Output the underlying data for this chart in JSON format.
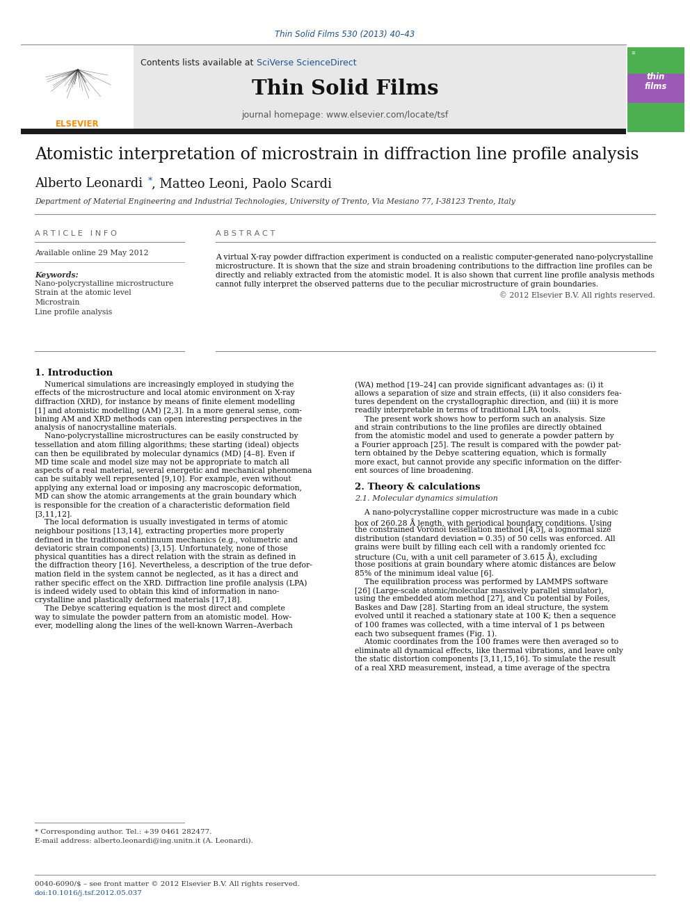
{
  "figsize": [
    9.92,
    13.23
  ],
  "dpi": 100,
  "bg_color": "#ffffff",
  "journal_citation": "Thin Solid Films 530 (2013) 40–43",
  "journal_citation_color": "#1a5294",
  "contents_line": "Contents lists available at ",
  "sciverse_text": "SciVerse ScienceDirect",
  "sciverse_color": "#1a5294",
  "journal_title": "Thin Solid Films",
  "journal_homepage": "journal homepage: www.elsevier.com/locate/tsf",
  "paper_title": "Atomistic interpretation of microstrain in diffraction line profile analysis",
  "affiliation": "Department of Material Engineering and Industrial Technologies, University of Trento, Via Mesiano 77, I-38123 Trento, Italy",
  "article_info_header": "A R T I C L E   I N F O",
  "available_online": "Available online 29 May 2012",
  "keywords_header": "Keywords:",
  "keywords": [
    "Nano-polycrystalline microstructure",
    "Strain at the atomic level",
    "Microstrain",
    "Line profile analysis"
  ],
  "abstract_header": "A B S T R A C T",
  "copyright": "© 2012 Elsevier B.V. All rights reserved.",
  "section1_title": "1. Introduction",
  "section2_title": "2. Theory & calculations",
  "section2_sub": "2.1. Molecular dynamics simulation",
  "footnote1": "* Corresponding author. Tel.: +39 0461 282477.",
  "footnote2": "E-mail address: alberto.leonardi@ing.unitn.it (A. Leonardi).",
  "footnote3": "0040-6090/$ – see front matter © 2012 Elsevier B.V. All rights reserved.",
  "footnote4": "doi:10.1016/j.tsf.2012.05.037",
  "header_bg": "#e8e8e8",
  "thick_border": "#1a1a1a",
  "link_color": "#1a5294",
  "elsevier_color": "#ff8c00",
  "col1_text": [
    "    Numerical simulations are increasingly employed in studying the",
    "effects of the microstructure and local atomic environment on X-ray",
    "diffraction (XRD), for instance by means of finite element modelling",
    "[1] and atomistic modelling (AM) [2,3]. In a more general sense, com-",
    "bining AM and XRD methods can open interesting perspectives in the",
    "analysis of nanocrystalline materials.",
    "    Nano-polycrystalline microstructures can be easily constructed by",
    "tessellation and atom filling algorithms; these starting (ideal) objects",
    "can then be equilibrated by molecular dynamics (MD) [4–8]. Even if",
    "MD time scale and model size may not be appropriate to match all",
    "aspects of a real material, several energetic and mechanical phenomena",
    "can be suitably well represented [9,10]. For example, even without",
    "applying any external load or imposing any macroscopic deformation,",
    "MD can show the atomic arrangements at the grain boundary which",
    "is responsible for the creation of a characteristic deformation field",
    "[3,11,12].",
    "    The local deformation is usually investigated in terms of atomic",
    "neighbour positions [13,14], extracting properties more properly",
    "defined in the traditional continuum mechanics (e.g., volumetric and",
    "deviatoric strain components) [3,15]. Unfortunately, none of those",
    "physical quantities has a direct relation with the strain as defined in",
    "the diffraction theory [16]. Nevertheless, a description of the true defor-",
    "mation field in the system cannot be neglected, as it has a direct and",
    "rather specific effect on the XRD. Diffraction line profile analysis (LPA)",
    "is indeed widely used to obtain this kind of information in nano-",
    "crystalline and plastically deformed materials [17,18].",
    "    The Debye scattering equation is the most direct and complete",
    "way to simulate the powder pattern from an atomistic model. How-",
    "ever, modelling along the lines of the well-known Warren–Averbach"
  ],
  "col2_text_part1": [
    "(WA) method [19–24] can provide significant advantages as: (i) it",
    "allows a separation of size and strain effects, (ii) it also considers fea-",
    "tures dependent on the crystallographic direction, and (iii) it is more",
    "readily interpretable in terms of traditional LPA tools.",
    "    The present work shows how to perform such an analysis. Size",
    "and strain contributions to the line profiles are directly obtained",
    "from the atomistic model and used to generate a powder pattern by",
    "a Fourier approach [25]. The result is compared with the powder pat-",
    "tern obtained by the Debye scattering equation, which is formally",
    "more exact, but cannot provide any specific information on the differ-",
    "ent sources of line broadening."
  ],
  "sec2_text": [
    "    A nano-polycrystalline copper microstructure was made in a cubic",
    "box of 260.28 Å length, with periodical boundary conditions. Using",
    "the constrained Voronoi tessellation method [4,5], a lognormal size",
    "distribution (standard deviation = 0.35) of 50 cells was enforced. All",
    "grains were built by filling each cell with a randomly oriented fcc",
    "structure (Cu, with a unit cell parameter of 3.615 Å), excluding",
    "those positions at grain boundary where atomic distances are below",
    "85% of the minimum ideal value [6].",
    "    The equilibration process was performed by LAMMPS software",
    "[26] (Large-scale atomic/molecular massively parallel simulator),",
    "using the embedded atom method [27], and Cu potential by Foiles,",
    "Baskes and Daw [28]. Starting from an ideal structure, the system",
    "evolved until it reached a stationary state at 100 K; then a sequence",
    "of 100 frames was collected, with a time interval of 1 ps between",
    "each two subsequent frames (Fig. 1).",
    "    Atomic coordinates from the 100 frames were then averaged so to",
    "eliminate all dynamical effects, like thermal vibrations, and leave only",
    "the static distortion components [3,11,15,16]. To simulate the result",
    "of a real XRD measurement, instead, a time average of the spectra"
  ],
  "abstract_lines": [
    "A virtual X-ray powder diffraction experiment is conducted on a realistic computer-generated nano-polycrystalline",
    "microstructure. It is shown that the size and strain broadening contributions to the diffraction line profiles can be",
    "directly and reliably extracted from the atomistic model. It is also shown that current line profile analysis methods",
    "cannot fully interpret the observed patterns due to the peculiar microstructure of grain boundaries."
  ]
}
